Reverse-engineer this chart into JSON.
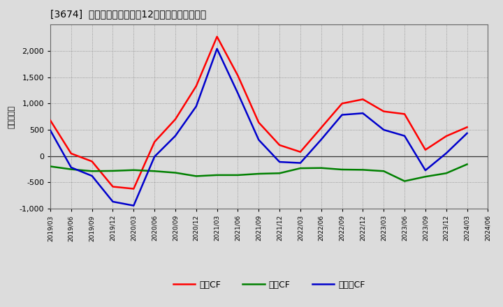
{
  "title": "[3674]  キャッシュフローの12か月移動合計の推移",
  "ylabel": "（百万円）",
  "background_color": "#dcdcdc",
  "plot_bg_color": "#dcdcdc",
  "grid_color": "#888888",
  "ylim": [
    -1000,
    2500
  ],
  "yticks": [
    -1000,
    -500,
    0,
    500,
    1000,
    1500,
    2000
  ],
  "dates": [
    "2019/03",
    "2019/06",
    "2019/09",
    "2019/12",
    "2020/03",
    "2020/06",
    "2020/09",
    "2020/12",
    "2021/03",
    "2021/06",
    "2021/09",
    "2021/12",
    "2022/03",
    "2022/06",
    "2022/09",
    "2022/12",
    "2023/03",
    "2023/06",
    "2023/09",
    "2023/12",
    "2024/03",
    "2024/06"
  ],
  "operating_cf": [
    680,
    50,
    -100,
    -580,
    -620,
    270,
    700,
    1330,
    2270,
    1530,
    640,
    210,
    80,
    540,
    1000,
    1080,
    850,
    800,
    120,
    380,
    550,
    null
  ],
  "investing_cf": [
    -195,
    -250,
    -285,
    -280,
    -265,
    -285,
    -315,
    -380,
    -360,
    -360,
    -335,
    -325,
    -230,
    -225,
    -255,
    -260,
    -285,
    -475,
    -390,
    -325,
    -155,
    null
  ],
  "free_cf": [
    490,
    -215,
    -375,
    -865,
    -940,
    -10,
    385,
    945,
    2040,
    1195,
    310,
    -110,
    -130,
    315,
    785,
    815,
    500,
    385,
    -270,
    55,
    435,
    null
  ],
  "operating_color": "#ff0000",
  "investing_color": "#008000",
  "free_color": "#0000cc",
  "line_width": 1.8,
  "legend_labels": [
    "営業CF",
    "投資CF",
    "フリーCF"
  ]
}
